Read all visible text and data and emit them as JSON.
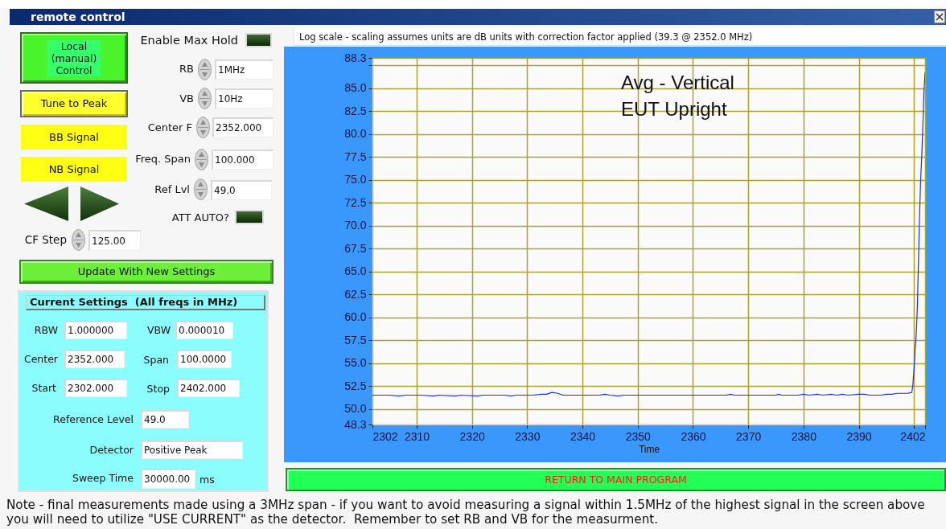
{
  "chart_data": [
    {
      "type": "other",
      "title": "remote control",
      "annotations": [
        "Local (manual) Control",
        "Enable Max Hold",
        "RB",
        "1MHz",
        "Tune to Peak",
        "VB",
        "10Hz",
        "BB Signal",
        "Center F",
        "2352.000",
        "Freq. Span",
        "100.000",
        "NB Signal",
        "Ref Lvl",
        "49.0",
        "ATT AUTO?",
        "CF Step",
        "125.00",
        "Update With New Settings",
        "Current Settings  (All freqs in MHz)",
        "RBW",
        "1.000000",
        "VBW",
        "0.000010",
        "Center",
        "2352.000",
        "Span",
        "100.0000",
        "Start",
        "2302.000",
        "Stop",
        "2402.000",
        "Reference Level",
        "49.0",
        "Detector",
        "Positive Peak",
        "Sweep Time",
        "30000.00",
        "ms"
      ]
    },
    {
      "type": "line",
      "title": "Log scale - scaling assumes units are dB units with correction factor applied (39.3 @ 2352.0 MHz)",
      "xlabel": "Time",
      "x": [
        2302,
        2305,
        2306.8,
        2308,
        2311,
        2313,
        2314,
        2317,
        2318,
        2321,
        2322,
        2326,
        2327,
        2328,
        2331,
        2332.5,
        2333.5,
        2334.5,
        2335.5,
        2336.5,
        2340,
        2343,
        2344,
        2345,
        2346.5,
        2347.5,
        2352,
        2358,
        2362,
        2366,
        2366.8,
        2367.5,
        2372,
        2375,
        2375.5,
        2376,
        2379,
        2380,
        2381,
        2382.5,
        2383.5,
        2385,
        2386,
        2387,
        2388,
        2390,
        2391,
        2392,
        2394,
        2395,
        2396,
        2397,
        2398,
        2398.8,
        2399.6,
        2399.8,
        2400,
        2400.2,
        2400.4,
        2400.6,
        2400.8,
        2401,
        2401.2,
        2401.4,
        2401.6,
        2401.8,
        2402
      ],
      "series": [
        {
          "color": "#1f2fe6",
          "values": [
            51.5,
            51.5,
            51.4,
            51.5,
            51.5,
            51.4,
            51.5,
            51.4,
            51.5,
            51.4,
            51.5,
            51.5,
            51.4,
            51.5,
            51.5,
            51.6,
            51.6,
            51.8,
            51.7,
            51.5,
            51.5,
            51.5,
            51.6,
            51.5,
            51.4,
            51.5,
            51.5,
            51.5,
            51.5,
            51.5,
            51.6,
            51.5,
            51.5,
            51.5,
            51.6,
            51.5,
            51.5,
            51.6,
            51.5,
            51.6,
            51.5,
            51.6,
            51.5,
            51.6,
            51.5,
            51.6,
            51.6,
            51.5,
            51.5,
            51.6,
            51.6,
            51.7,
            51.7,
            51.7,
            51.8,
            52.7,
            54.4,
            56.5,
            58.2,
            61.1,
            66,
            71.1,
            75,
            77.6,
            81,
            84.8,
            86.7
          ]
        }
      ],
      "xlim": [
        2302,
        2402
      ],
      "ylim": [
        48.3,
        88.3
      ],
      "xticks": [
        2302,
        2310,
        2320,
        2330,
        2340,
        2350,
        2360,
        2370,
        2380,
        2390,
        {
          "value": 2400,
          "label": null
        },
        2402
      ],
      "yticks": [
        48.3,
        {
          "value": 50,
          "label": "50.0"
        },
        52.5,
        {
          "value": 55,
          "label": "55.0"
        },
        57.5,
        {
          "value": 60,
          "label": "60.0"
        },
        62.5,
        {
          "value": 65,
          "label": "65.0"
        },
        67.5,
        {
          "value": 70,
          "label": "70.0"
        },
        72.5,
        {
          "value": 75,
          "label": "75.0"
        },
        77.5,
        {
          "value": 80,
          "label": "80.0"
        },
        82.5,
        {
          "value": 85,
          "label": "85.0"
        },
        {
          "value": 87.5,
          "label": null
        },
        88.3
      ],
      "grid": true,
      "annotations": [
        "Avg - Vertical",
        "EUT Upright",
        "RETURN TO MAIN PROGRAM",
        "Note - final measurements made using a 3MHz span - if you want to avoid measuring a signal within 1.5MHz of the highest signal in the screen above you will need to utilize \"USE CURRENT\" as the detector.  Remember to set RB and VB for the measurment."
      ]
    }
  ]
}
